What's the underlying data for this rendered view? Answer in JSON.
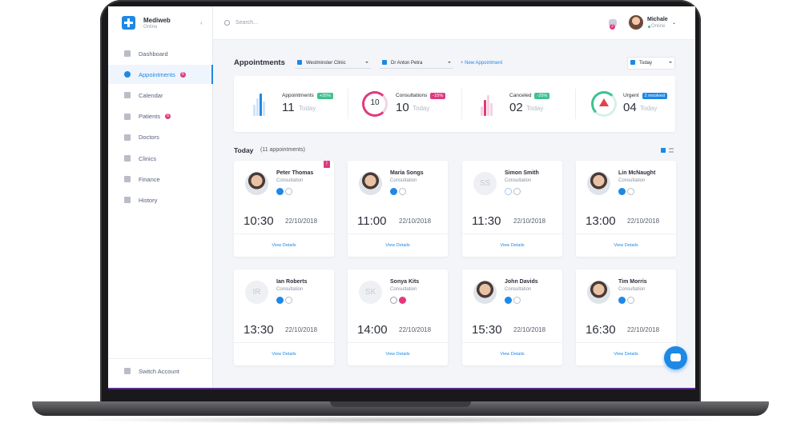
{
  "brand": {
    "name": "Mediweb",
    "status": "Online"
  },
  "search": {
    "placeholder": "Search..."
  },
  "user": {
    "name": "Michale",
    "status": "Online",
    "notifications": "2"
  },
  "nav": [
    {
      "label": "Dashboard"
    },
    {
      "label": "Appointments",
      "badge": "8",
      "active": true
    },
    {
      "label": "Calendar"
    },
    {
      "label": "Patients",
      "badge": "6"
    },
    {
      "label": "Doctors"
    },
    {
      "label": "Clinics"
    },
    {
      "label": "Finance"
    },
    {
      "label": "History"
    }
  ],
  "switch_account": "Switch Account",
  "toolbar": {
    "title": "Appointments",
    "clinic": "Westminster Clinic",
    "doctor": "Dr Anton Petra",
    "new_appointment": "+ New Appointment",
    "date": "Today"
  },
  "stats": [
    {
      "label": "Appointments",
      "change": "+25%",
      "value": "11",
      "period": "Today",
      "color": "#3ec28f"
    },
    {
      "label": "Consultations",
      "change": "-15%",
      "value": "10",
      "period": "Today",
      "ring_label": "10",
      "color": "#e03a7d"
    },
    {
      "label": "Canceled",
      "change": "-25%",
      "value": "02",
      "period": "Today",
      "color": "#3ec28f"
    },
    {
      "label": "Urgent",
      "change": "2 resolved",
      "value": "04",
      "period": "Today",
      "color": "#1e88e5"
    }
  ],
  "today": {
    "title": "Today",
    "count": "(11 appointments)"
  },
  "appointments": [
    {
      "name": "Peter Thomas",
      "type": "Consultation",
      "time": "10:30",
      "date": "22/10/2018",
      "link": "View Details",
      "status": "confirmed",
      "flag": "!"
    },
    {
      "name": "Maria Songs",
      "type": "Consultation",
      "time": "11:00",
      "date": "22/10/2018",
      "link": "View Details",
      "status": "confirmed"
    },
    {
      "name": "Simon Smith",
      "type": "Consultation",
      "time": "11:30",
      "date": "22/10/2018",
      "link": "View Details",
      "status": "pending",
      "initials": "SS"
    },
    {
      "name": "Lin McNaught",
      "type": "Consultation",
      "time": "13:00",
      "date": "22/10/2018",
      "link": "View Details",
      "status": "confirmed"
    },
    {
      "name": "Ian Roberts",
      "type": "Consultation",
      "time": "13:30",
      "date": "22/10/2018",
      "link": "View Details",
      "status": "confirmed",
      "initials": "IR"
    },
    {
      "name": "Sonya Kits",
      "type": "Consultation",
      "time": "14:00",
      "date": "22/10/2018",
      "link": "View Details",
      "status": "cancelled",
      "initials": "SK"
    },
    {
      "name": "John Davids",
      "type": "Consultation",
      "time": "15:30",
      "date": "22/10/2018",
      "link": "View Details",
      "status": "confirmed"
    },
    {
      "name": "Tim Morris",
      "type": "Consultation",
      "time": "16:30",
      "date": "22/10/2018",
      "link": "View Details",
      "status": "confirmed"
    }
  ]
}
